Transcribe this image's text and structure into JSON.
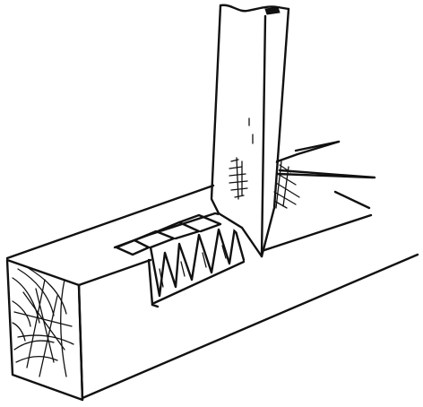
{
  "illustration": {
    "subject": "chisel-cutting-mortise-in-timber",
    "style": "black-ink-line-engraving",
    "colors": {
      "ink": "#111111",
      "paper": "#ffffff"
    }
  }
}
